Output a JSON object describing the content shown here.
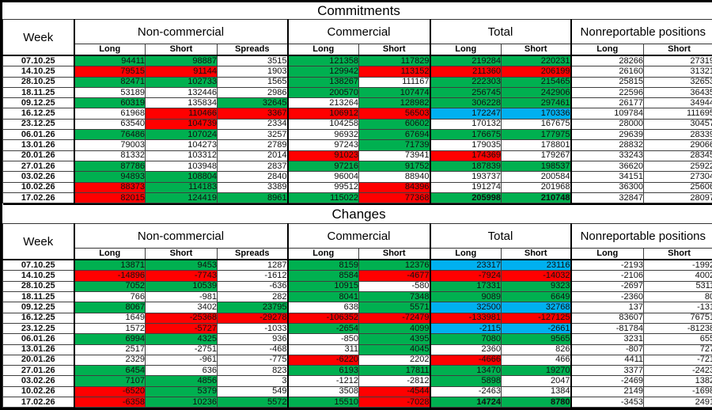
{
  "colors": {
    "g": "#00B050",
    "r": "#FF0000",
    "b": "#00B0F0",
    "w": "#FFFFFF"
  },
  "header": {
    "week_label": "Week",
    "groups": [
      {
        "label": "Non-commercial",
        "cols": [
          "Long",
          "Short",
          "Spreads"
        ]
      },
      {
        "label": "Commercial",
        "cols": [
          "Long",
          "Short"
        ]
      },
      {
        "label": "Total",
        "cols": [
          "Long",
          "Short"
        ]
      },
      {
        "label": "Nonreportable positions",
        "cols": [
          "Long",
          "Short"
        ]
      }
    ]
  },
  "sections": [
    {
      "title": "Commitments",
      "rows": [
        {
          "week": "07.10.25",
          "values": [
            94411,
            98887,
            3515,
            121358,
            117829,
            219284,
            220231,
            28266,
            27319
          ],
          "fills": [
            "g",
            "g",
            "w",
            "g",
            "g",
            "g",
            "g",
            "w",
            "w"
          ]
        },
        {
          "week": "14.10.25",
          "values": [
            79515,
            91144,
            1903,
            129942,
            113152,
            211360,
            206199,
            26160,
            31321
          ],
          "fills": [
            "r",
            "r",
            "w",
            "g",
            "r",
            "r",
            "r",
            "w",
            "w"
          ]
        },
        {
          "week": "28.10.25",
          "values": [
            82471,
            102733,
            1565,
            138267,
            111167,
            222303,
            215465,
            25815,
            32653
          ],
          "fills": [
            "g",
            "g",
            "w",
            "g",
            "w",
            "g",
            "g",
            "w",
            "w"
          ]
        },
        {
          "week": "18.11.25",
          "values": [
            53189,
            132446,
            2986,
            200570,
            107474,
            256745,
            242906,
            22596,
            36435
          ],
          "fills": [
            "w",
            "w",
            "w",
            "g",
            "g",
            "g",
            "g",
            "w",
            "w"
          ]
        },
        {
          "week": "09.12.25",
          "values": [
            60319,
            135834,
            32645,
            213264,
            128982,
            306228,
            297461,
            26177,
            34944
          ],
          "fills": [
            "g",
            "w",
            "g",
            "w",
            "g",
            "g",
            "g",
            "w",
            "w"
          ]
        },
        {
          "week": "16.12.25",
          "values": [
            61968,
            110466,
            3367,
            106912,
            56503,
            172247,
            170336,
            109784,
            111695
          ],
          "fills": [
            "w",
            "r",
            "r",
            "r",
            "r",
            "b",
            "b",
            "w",
            "w"
          ]
        },
        {
          "week": "23.12.25",
          "values": [
            63540,
            104739,
            2334,
            104258,
            60602,
            170132,
            167675,
            28000,
            30457
          ],
          "fills": [
            "w",
            "r",
            "w",
            "w",
            "g",
            "w",
            "w",
            "w",
            "w"
          ]
        },
        {
          "week": "06.01.26",
          "values": [
            76486,
            107024,
            3257,
            96932,
            67694,
            176675,
            177975,
            29639,
            28339
          ],
          "fills": [
            "g",
            "g",
            "w",
            "w",
            "g",
            "g",
            "g",
            "w",
            "w"
          ]
        },
        {
          "week": "13.01.26",
          "values": [
            79003,
            104273,
            2789,
            97243,
            71739,
            179035,
            178801,
            28832,
            29066
          ],
          "fills": [
            "w",
            "w",
            "w",
            "w",
            "g",
            "w",
            "w",
            "w",
            "w"
          ]
        },
        {
          "week": "20.01.26",
          "values": [
            81332,
            103312,
            2014,
            91023,
            73941,
            174369,
            179267,
            33243,
            28345
          ],
          "fills": [
            "w",
            "w",
            "w",
            "r",
            "w",
            "r",
            "w",
            "w",
            "w"
          ]
        },
        {
          "week": "27.01.26",
          "values": [
            87786,
            103948,
            2837,
            97216,
            91752,
            187839,
            198537,
            36620,
            25922
          ],
          "fills": [
            "g",
            "w",
            "w",
            "g",
            "g",
            "g",
            "g",
            "w",
            "w"
          ]
        },
        {
          "week": "03.02.26",
          "values": [
            94893,
            108804,
            2840,
            96004,
            88940,
            193737,
            200584,
            34151,
            27304
          ],
          "fills": [
            "g",
            "g",
            "w",
            "w",
            "w",
            "w",
            "w",
            "w",
            "w"
          ]
        },
        {
          "week": "10.02.26",
          "values": [
            88373,
            114183,
            3389,
            99512,
            84396,
            191274,
            201968,
            36300,
            25606
          ],
          "fills": [
            "r",
            "g",
            "w",
            "w",
            "r",
            "w",
            "w",
            "w",
            "w"
          ]
        },
        {
          "week": "17.02.26",
          "values": [
            82015,
            124419,
            8961,
            115022,
            77368,
            205998,
            210748,
            32847,
            28097
          ],
          "fills": [
            "r",
            "g",
            "g",
            "g",
            "r",
            "g",
            "g",
            "w",
            "w"
          ],
          "bold": [
            5,
            6
          ]
        }
      ]
    },
    {
      "title": "Changes",
      "rows": [
        {
          "week": "07.10.25",
          "values": [
            13871,
            9453,
            1287,
            8159,
            12376,
            23317,
            23116,
            -2193,
            -1992
          ],
          "fills": [
            "g",
            "g",
            "w",
            "g",
            "g",
            "b",
            "b",
            "w",
            "w"
          ]
        },
        {
          "week": "14.10.25",
          "values": [
            -14896,
            -7743,
            -1612,
            8584,
            -4677,
            -7924,
            -14032,
            -2106,
            4002
          ],
          "fills": [
            "r",
            "r",
            "w",
            "g",
            "r",
            "r",
            "r",
            "w",
            "w"
          ]
        },
        {
          "week": "28.10.25",
          "values": [
            7052,
            10539,
            -636,
            10915,
            -580,
            17331,
            9323,
            -2697,
            5311
          ],
          "fills": [
            "g",
            "g",
            "w",
            "g",
            "w",
            "g",
            "g",
            "w",
            "w"
          ]
        },
        {
          "week": "18.11.25",
          "values": [
            766,
            -981,
            282,
            8041,
            7348,
            9089,
            6649,
            -2360,
            80
          ],
          "fills": [
            "w",
            "w",
            "w",
            "g",
            "g",
            "g",
            "g",
            "w",
            "w"
          ]
        },
        {
          "week": "09.12.25",
          "values": [
            8067,
            3402,
            23795,
            638,
            5571,
            32500,
            32768,
            137,
            -131
          ],
          "fills": [
            "g",
            "w",
            "g",
            "w",
            "g",
            "b",
            "b",
            "w",
            "w"
          ]
        },
        {
          "week": "16.12.25",
          "values": [
            1649,
            -25368,
            -29278,
            -106352,
            -72479,
            -133981,
            -127125,
            83607,
            76751
          ],
          "fills": [
            "w",
            "r",
            "r",
            "r",
            "r",
            "r",
            "r",
            "w",
            "w"
          ]
        },
        {
          "week": "23.12.25",
          "values": [
            1572,
            -5727,
            -1033,
            -2654,
            4099,
            -2115,
            -2661,
            -81784,
            -81238
          ],
          "fills": [
            "w",
            "r",
            "w",
            "g",
            "g",
            "b",
            "b",
            "w",
            "w"
          ]
        },
        {
          "week": "06.01.26",
          "values": [
            6994,
            4325,
            936,
            -850,
            4395,
            7080,
            9565,
            3231,
            655
          ],
          "fills": [
            "g",
            "g",
            "w",
            "w",
            "g",
            "g",
            "g",
            "w",
            "w"
          ]
        },
        {
          "week": "13.01.26",
          "values": [
            2517,
            -2751,
            -468,
            311,
            4045,
            2360,
            826,
            -807,
            727
          ],
          "fills": [
            "w",
            "w",
            "w",
            "w",
            "g",
            "w",
            "w",
            "w",
            "w"
          ]
        },
        {
          "week": "20.01.26",
          "values": [
            2329,
            -961,
            -775,
            -6220,
            2202,
            -4666,
            466,
            4411,
            -721
          ],
          "fills": [
            "w",
            "w",
            "w",
            "r",
            "w",
            "r",
            "w",
            "w",
            "w"
          ]
        },
        {
          "week": "27.01.26",
          "values": [
            6454,
            636,
            823,
            6193,
            17811,
            13470,
            19270,
            3377,
            -2423
          ],
          "fills": [
            "g",
            "w",
            "w",
            "g",
            "g",
            "g",
            "g",
            "w",
            "w"
          ]
        },
        {
          "week": "03.02.26",
          "values": [
            7107,
            4856,
            3,
            -1212,
            -2812,
            5898,
            2047,
            -2469,
            1382
          ],
          "fills": [
            "g",
            "g",
            "w",
            "w",
            "w",
            "g",
            "w",
            "w",
            "w"
          ]
        },
        {
          "week": "10.02.26",
          "values": [
            -6520,
            5379,
            549,
            3508,
            -4544,
            -2463,
            1384,
            2149,
            -1698
          ],
          "fills": [
            "r",
            "g",
            "w",
            "w",
            "r",
            "w",
            "w",
            "w",
            "w"
          ]
        },
        {
          "week": "17.02.26",
          "values": [
            -6358,
            10236,
            5572,
            15510,
            -7028,
            14724,
            8780,
            -3453,
            2491
          ],
          "fills": [
            "r",
            "g",
            "g",
            "g",
            "r",
            "g",
            "g",
            "w",
            "w"
          ],
          "bold": [
            5,
            6
          ]
        }
      ]
    }
  ]
}
